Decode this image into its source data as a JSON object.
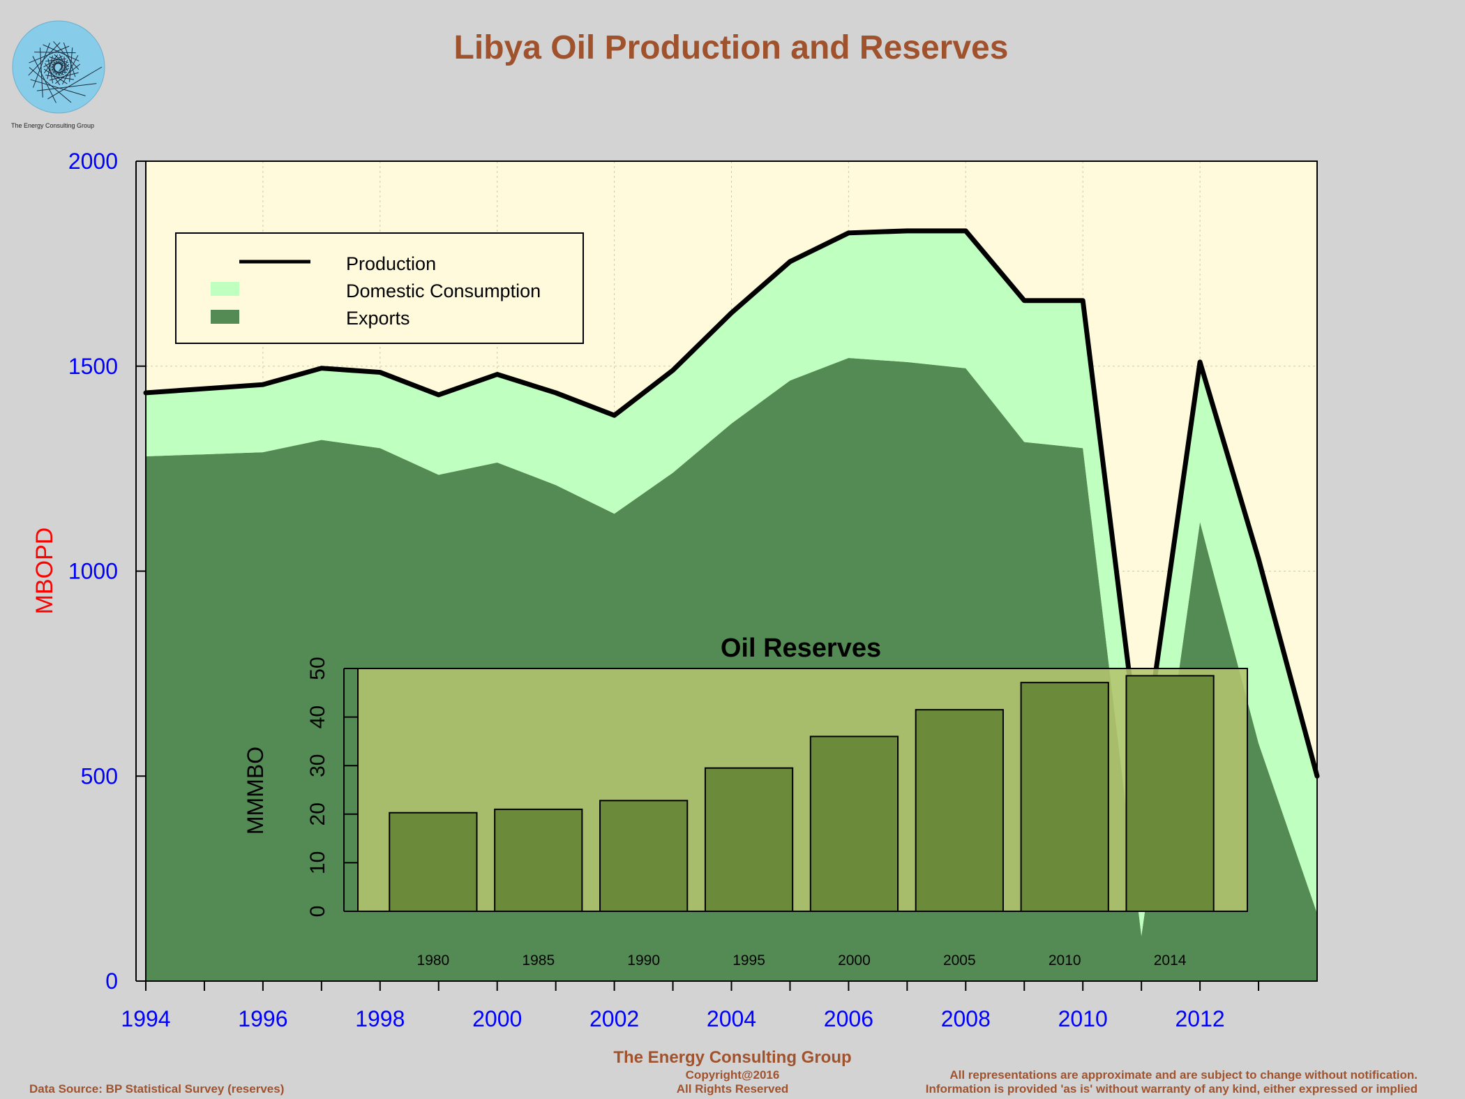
{
  "logo": {
    "caption": "The Energy Consulting Group"
  },
  "footer": {
    "company": "The Energy Consulting Group",
    "copyright": "Copyright@2016",
    "rights": "All Rights Reserved",
    "source": "Data Source: BP Statistical Survey (reserves)",
    "disclaimer_1": "All representations are approximate and are subject to change without notification.",
    "disclaimer_2": "Information is provided 'as is' without warranty of any kind, either expressed or implied"
  },
  "colors": {
    "background": "#d3d3d3",
    "plot_bg": "#fffadc",
    "domestic": "#bfffbf",
    "exports": "#548b54",
    "production_line": "#000000",
    "title": "#a0522d",
    "axis_tick": "#0000ff",
    "ylabel": "#ff0000",
    "inset_bg": "#b3c46e",
    "inset_bar": "#6b8b3b"
  },
  "chart_data": [
    {
      "type": "area",
      "title": "Libya Oil Production and Reserves",
      "xlabel": "",
      "ylabel": "MBOPD",
      "xlim": [
        1994,
        2014
      ],
      "ylim": [
        0,
        2000
      ],
      "xticks": [
        1994,
        1996,
        1998,
        2000,
        2002,
        2004,
        2006,
        2008,
        2010,
        2012
      ],
      "yticks": [
        0,
        500,
        1000,
        1500,
        2000
      ],
      "grid": true,
      "legend_position": "top-left",
      "x": [
        1994,
        1995,
        1996,
        1997,
        1998,
        1999,
        2000,
        2001,
        2002,
        2003,
        2004,
        2005,
        2006,
        2007,
        2008,
        2009,
        2010,
        2011,
        2012,
        2013,
        2014
      ],
      "series": [
        {
          "name": "Production",
          "style": "line",
          "values": [
            1435,
            1445,
            1455,
            1495,
            1485,
            1430,
            1480,
            1435,
            1380,
            1490,
            1630,
            1755,
            1825,
            1830,
            1830,
            1660,
            1660,
            510,
            1510,
            1030,
            500
          ]
        },
        {
          "name": "Domestic Consumption",
          "style": "area",
          "values": [
            155,
            160,
            165,
            175,
            185,
            195,
            215,
            225,
            240,
            250,
            270,
            290,
            305,
            320,
            335,
            345,
            360,
            400,
            390,
            450,
            335
          ]
        },
        {
          "name": "Exports",
          "style": "area",
          "values": [
            1280,
            1285,
            1290,
            1320,
            1300,
            1235,
            1265,
            1210,
            1140,
            1240,
            1360,
            1465,
            1520,
            1510,
            1495,
            1315,
            1300,
            110,
            1120,
            580,
            165
          ]
        }
      ]
    },
    {
      "type": "bar",
      "title": "Oil Reserves",
      "xlabel": "",
      "ylabel": "MMMBO",
      "ylim": [
        0,
        50
      ],
      "yticks": [
        0,
        10,
        20,
        30,
        40,
        50
      ],
      "categories": [
        "1980",
        "1985",
        "1990",
        "1995",
        "2000",
        "2005",
        "2010",
        "2014"
      ],
      "values": [
        20.3,
        21.0,
        22.8,
        29.5,
        36.0,
        41.5,
        47.1,
        48.5
      ]
    }
  ]
}
